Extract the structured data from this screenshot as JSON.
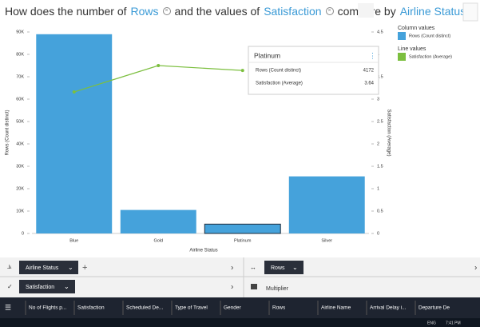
{
  "header": {
    "parts": [
      "How does the number of",
      "Rows",
      "and the values of",
      "Satisfaction",
      "compare by",
      "Airline Status",
      "?"
    ]
  },
  "chart_data": {
    "type": "bar_line",
    "categories": [
      "Blue",
      "Gold",
      "Platinum",
      "Silver"
    ],
    "series": [
      {
        "name": "Rows (Count distinct)",
        "color": "#45a2db",
        "values": [
          89000,
          10500,
          4172,
          25500
        ]
      },
      {
        "name": "Satisfaction (Average)",
        "color": "#7cbf3f",
        "axis": "y2",
        "values": [
          3.16,
          3.75,
          3.64,
          null
        ]
      }
    ],
    "ylim": [
      0,
      90000
    ],
    "yticks": [
      0,
      {
        "value": 10000,
        "label": "10K"
      },
      {
        "value": 20000,
        "label": "20K"
      },
      {
        "value": 30000,
        "label": "30K"
      },
      {
        "value": 40000,
        "label": "40K"
      },
      {
        "value": 50000,
        "label": "50K"
      },
      {
        "value": 60000,
        "label": "60K"
      },
      {
        "value": 70000,
        "label": "70K"
      },
      {
        "value": 80000,
        "label": "80K"
      },
      {
        "value": 90000,
        "label": "90K"
      }
    ],
    "y2lim": [
      0,
      4.5
    ],
    "y2ticks": [
      0,
      0.5,
      1,
      1.5,
      2,
      2.5,
      3,
      3.5,
      4,
      4.5
    ],
    "ylabel": "Rows (Count distinct)",
    "y2label": "Satisfaction (Average)",
    "xlabel": "Airline Status",
    "legend": {
      "column_title": "Column values",
      "line_title": "Line values"
    },
    "tooltip": {
      "title": "Platinum",
      "index": 2
    }
  },
  "panel": {
    "row1": {
      "left": "Airline Status",
      "plus": "+",
      "right": "Rows"
    },
    "row2": {
      "left": "Satisfaction",
      "right": "Multiplier"
    },
    "columns": [
      "No of Flights p...",
      "Satisfaction",
      "Scheduled De...",
      "Type of Travel",
      "Gender",
      "Rows",
      "Airline Name",
      "Arrival Delay i...",
      "Departure De"
    ]
  },
  "taskbar": {
    "lang": "ENG",
    "time": "7:41 PM"
  }
}
